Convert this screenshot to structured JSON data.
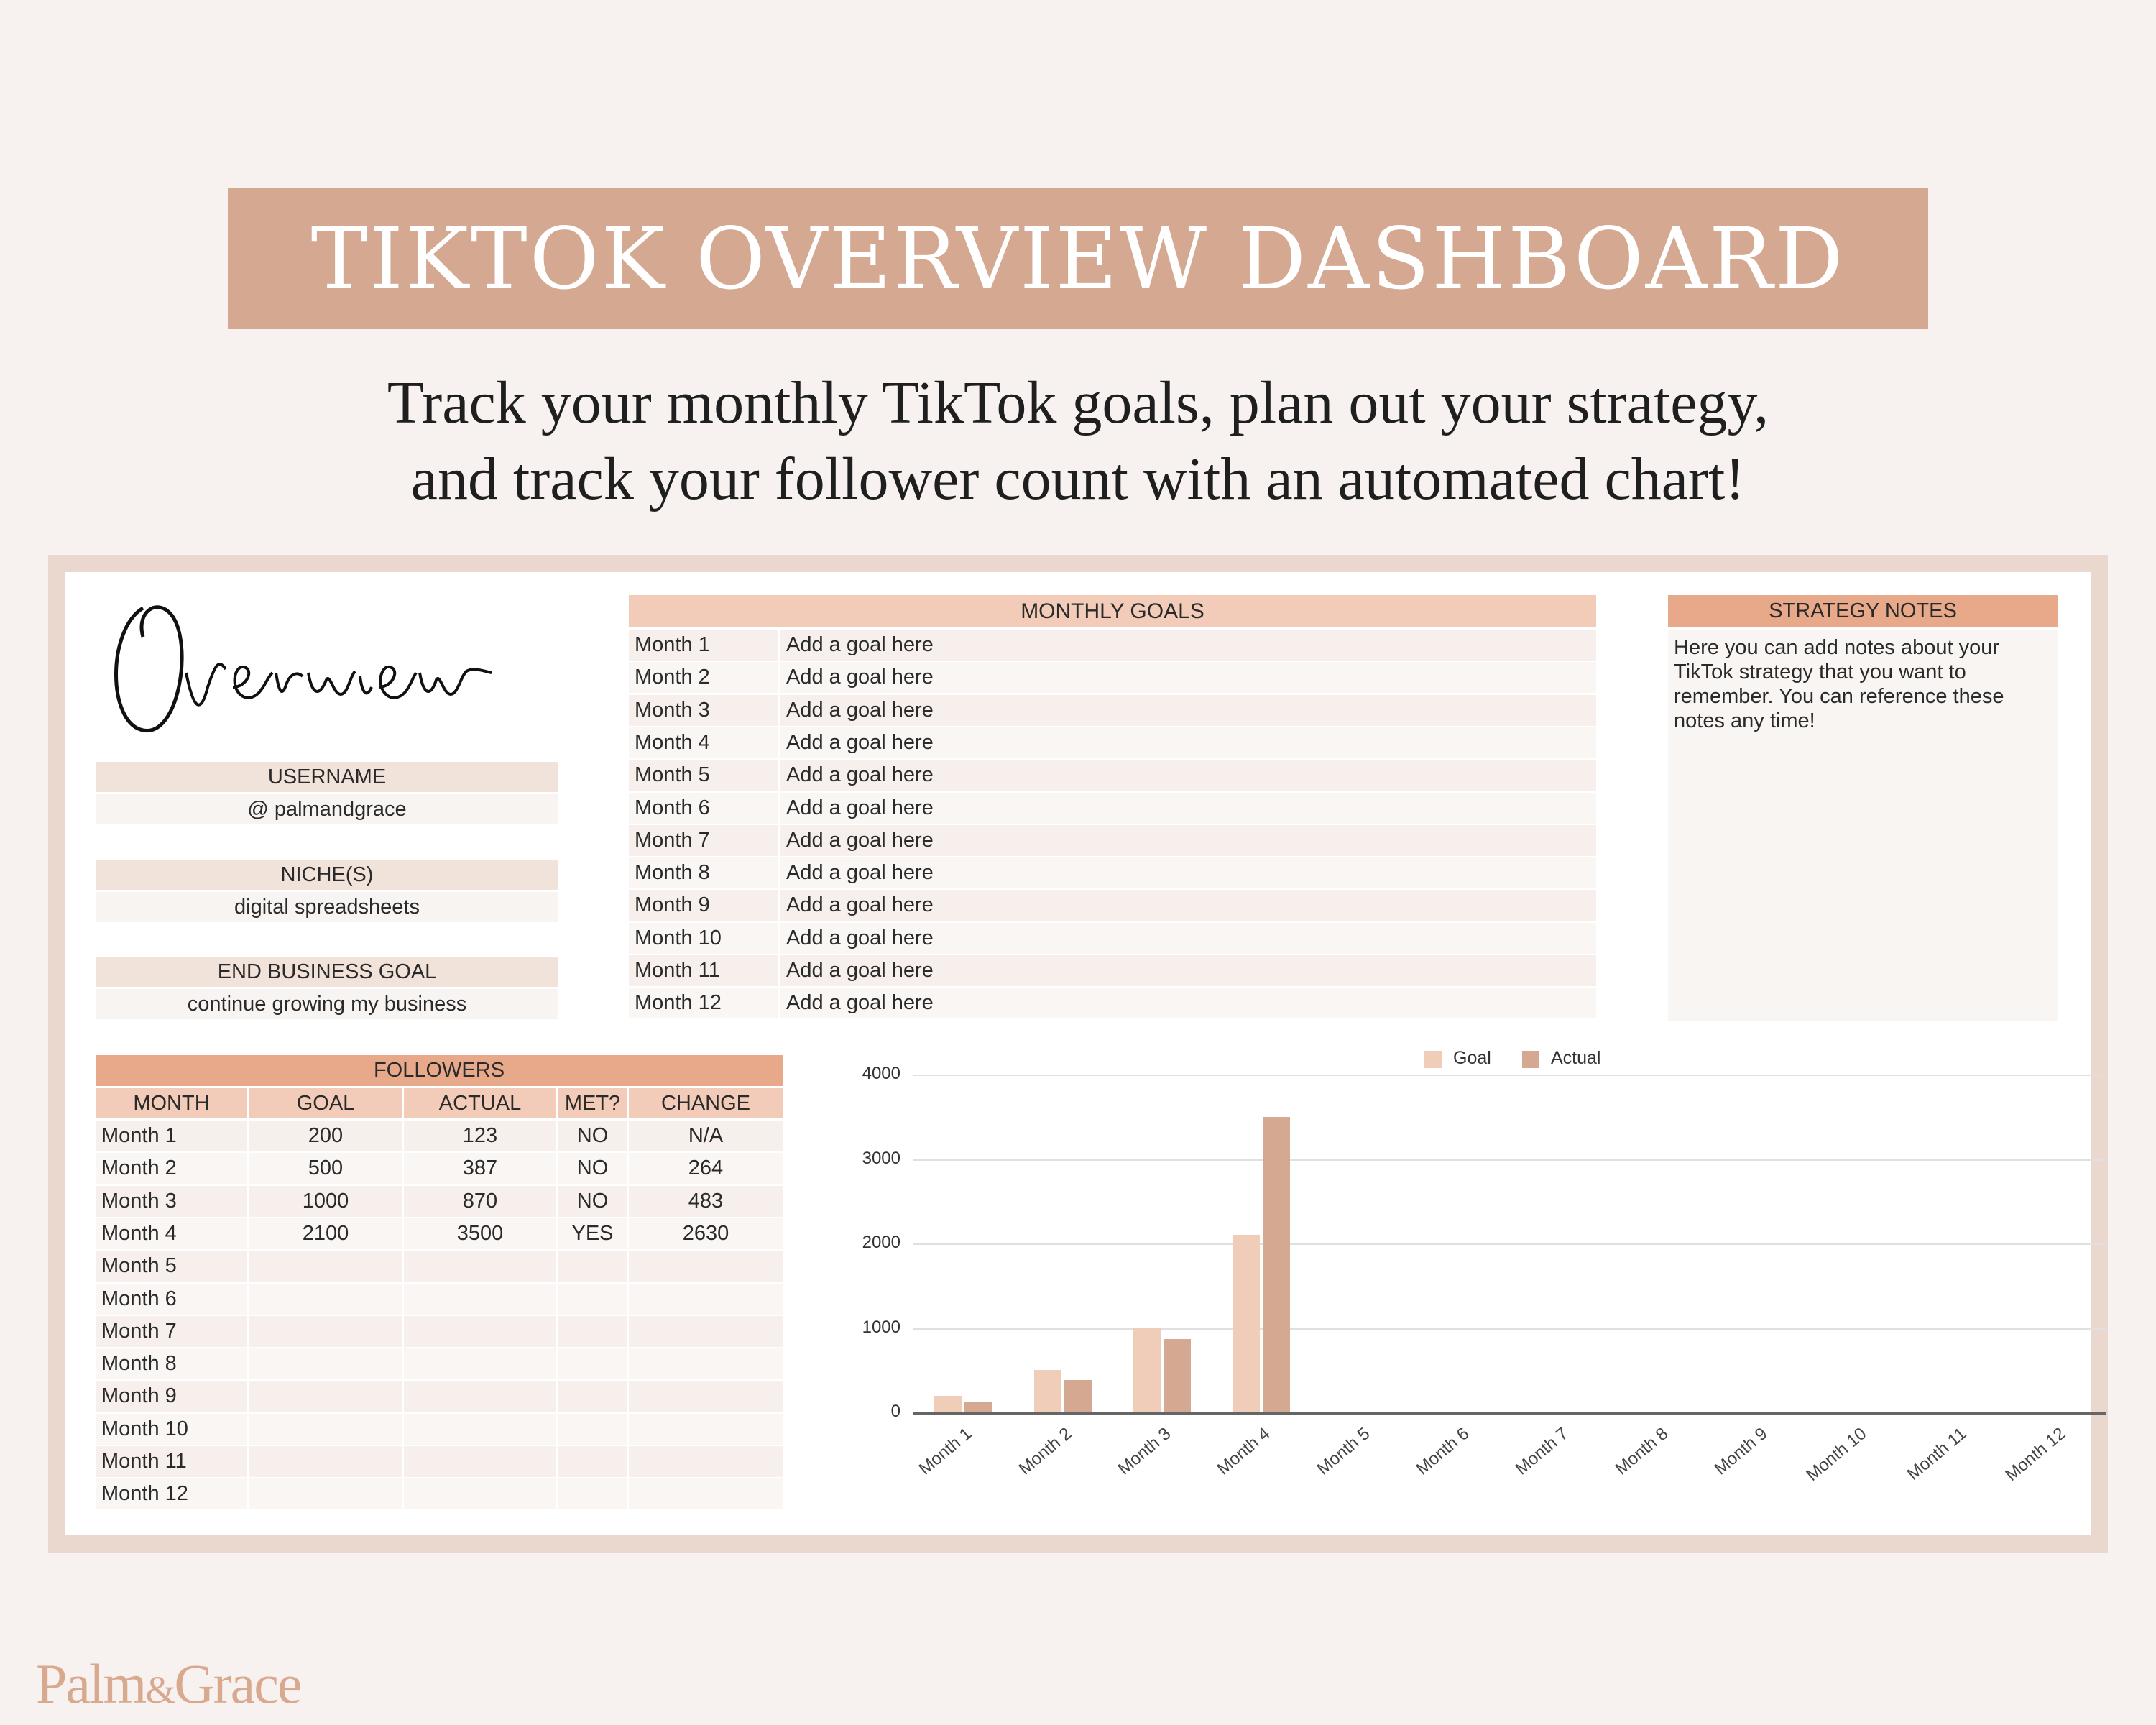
{
  "banner": {
    "title": "TIKTOK OVERVIEW DASHBOARD"
  },
  "subtitle": {
    "line1": "Track your monthly TikTok goals, plan out your strategy,",
    "line2": "and track your follower count with an automated chart!"
  },
  "overview": {
    "heading": "Overview",
    "username_label": "USERNAME",
    "username_value": "@ palmandgrace",
    "niche_label": "NICHE(S)",
    "niche_value": "digital spreadsheets",
    "goal_label": "END BUSINESS GOAL",
    "goal_value": "continue growing my business"
  },
  "monthly_goals": {
    "title": "MONTHLY GOALS",
    "rows": [
      {
        "month": "Month 1",
        "goal": "Add a goal here"
      },
      {
        "month": "Month 2",
        "goal": "Add a goal here"
      },
      {
        "month": "Month 3",
        "goal": "Add a goal here"
      },
      {
        "month": "Month 4",
        "goal": "Add a goal here"
      },
      {
        "month": "Month 5",
        "goal": "Add a goal here"
      },
      {
        "month": "Month 6",
        "goal": "Add a goal here"
      },
      {
        "month": "Month 7",
        "goal": "Add a goal here"
      },
      {
        "month": "Month 8",
        "goal": "Add a goal here"
      },
      {
        "month": "Month 9",
        "goal": "Add a goal here"
      },
      {
        "month": "Month 10",
        "goal": "Add a goal here"
      },
      {
        "month": "Month 11",
        "goal": "Add a goal here"
      },
      {
        "month": "Month 12",
        "goal": "Add a goal here"
      }
    ]
  },
  "strategy_notes": {
    "title": "STRATEGY NOTES",
    "body": "Here you can add notes about your TikTok strategy that you want to remember. You can reference these notes any time!"
  },
  "followers": {
    "title": "FOLLOWERS",
    "columns": [
      "MONTH",
      "GOAL",
      "ACTUAL",
      "MET?",
      "CHANGE"
    ],
    "rows": [
      [
        "Month 1",
        "200",
        "123",
        "NO",
        "N/A"
      ],
      [
        "Month 2",
        "500",
        "387",
        "NO",
        "264"
      ],
      [
        "Month 3",
        "1000",
        "870",
        "NO",
        "483"
      ],
      [
        "Month 4",
        "2100",
        "3500",
        "YES",
        "2630"
      ],
      [
        "Month 5",
        "",
        "",
        "",
        ""
      ],
      [
        "Month 6",
        "",
        "",
        "",
        ""
      ],
      [
        "Month 7",
        "",
        "",
        "",
        ""
      ],
      [
        "Month 8",
        "",
        "",
        "",
        ""
      ],
      [
        "Month 9",
        "",
        "",
        "",
        ""
      ],
      [
        "Month 10",
        "",
        "",
        "",
        ""
      ],
      [
        "Month 11",
        "",
        "",
        "",
        ""
      ],
      [
        "Month 12",
        "",
        "",
        "",
        ""
      ]
    ]
  },
  "colors": {
    "goal": "#f0cdb9",
    "actual": "#d4a891",
    "accent": "#e8a98b"
  },
  "chart_data": {
    "type": "bar",
    "categories": [
      "Month 1",
      "Month 2",
      "Month 3",
      "Month 4",
      "Month 5",
      "Month 6",
      "Month 7",
      "Month 8",
      "Month 9",
      "Month 10",
      "Month 11",
      "Month 12"
    ],
    "series": [
      {
        "name": "Goal",
        "values": [
          200,
          500,
          1000,
          2100,
          0,
          0,
          0,
          0,
          0,
          0,
          0,
          0
        ]
      },
      {
        "name": "Actual",
        "values": [
          123,
          387,
          870,
          3500,
          0,
          0,
          0,
          0,
          0,
          0,
          0,
          0
        ]
      }
    ],
    "yticks": [
      "0",
      "1000",
      "2000",
      "3000",
      "4000"
    ],
    "ylim": [
      0,
      4000
    ],
    "legend": "top",
    "grid": true
  },
  "brand": {
    "name": "Palm & Grace",
    "logo_text": "Palm&Grace"
  }
}
